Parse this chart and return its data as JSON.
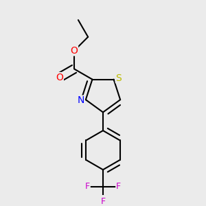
{
  "bg_color": "#ebebeb",
  "bond_color": "#000000",
  "bond_width": 1.5,
  "atom_colors": {
    "O": "#ff0000",
    "N": "#0000ff",
    "S": "#bbbb00",
    "F": "#cc00cc",
    "C": "#000000"
  },
  "font_size": 9,
  "fig_size": [
    3.0,
    3.0
  ],
  "dpi": 100
}
